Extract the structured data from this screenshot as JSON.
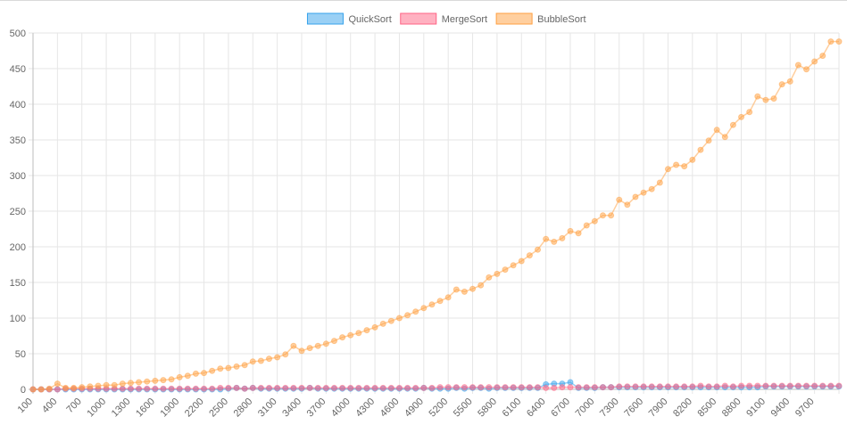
{
  "chart_data": {
    "type": "line",
    "title": "",
    "xlabel": "",
    "ylabel": "",
    "ylim": [
      0,
      500
    ],
    "yticks": [
      0,
      50,
      100,
      150,
      200,
      250,
      300,
      350,
      400,
      450,
      500
    ],
    "grid": true,
    "legend": "top-center",
    "x": [
      100,
      200,
      300,
      400,
      500,
      600,
      700,
      800,
      900,
      1000,
      1100,
      1200,
      1300,
      1400,
      1500,
      1600,
      1700,
      1800,
      1900,
      2000,
      2100,
      2200,
      2300,
      2400,
      2500,
      2600,
      2700,
      2800,
      2900,
      3000,
      3100,
      3200,
      3300,
      3400,
      3500,
      3600,
      3700,
      3800,
      3900,
      4000,
      4100,
      4200,
      4300,
      4400,
      4500,
      4600,
      4700,
      4800,
      4900,
      5000,
      5100,
      5200,
      5300,
      5400,
      5500,
      5600,
      5700,
      5800,
      5900,
      6000,
      6100,
      6200,
      6300,
      6400,
      6500,
      6600,
      6700,
      6800,
      6900,
      7000,
      7100,
      7200,
      7300,
      7400,
      7500,
      7600,
      7700,
      7800,
      7900,
      8000,
      8100,
      8200,
      8300,
      8400,
      8500,
      8600,
      8700,
      8800,
      8900,
      9000,
      9100,
      9200,
      9300,
      9400,
      9500,
      9600,
      9700,
      9800,
      9900,
      10000
    ],
    "x_tick_labels": [
      "100",
      "400",
      "700",
      "1000",
      "1300",
      "1600",
      "1900",
      "2200",
      "2500",
      "2800",
      "3100",
      "3400",
      "3700",
      "4000",
      "4300",
      "4600",
      "4900",
      "5200",
      "5500",
      "5800",
      "6100",
      "6400",
      "6700",
      "7000",
      "7300",
      "7600",
      "7900",
      "8200",
      "8500",
      "8800",
      "9100",
      "9400",
      "9700"
    ],
    "series": [
      {
        "name": "QuickSort",
        "color": "#36a2eb",
        "fill": "rgba(54,162,235,0.5)",
        "values": [
          0,
          0,
          0,
          0,
          0,
          0,
          0,
          0,
          0,
          0,
          0,
          0,
          0,
          0,
          0,
          0,
          0,
          0,
          0,
          0,
          0,
          0,
          0,
          0,
          1,
          2,
          1,
          2,
          1,
          1,
          1,
          1,
          1,
          1,
          2,
          1,
          1,
          1,
          1,
          1,
          1,
          1,
          1,
          1,
          1,
          1,
          1,
          1,
          2,
          1,
          1,
          1,
          2,
          1,
          2,
          2,
          1,
          2,
          2,
          2,
          2,
          2,
          2,
          7,
          8,
          8,
          10,
          2,
          2,
          2,
          3,
          3,
          3,
          3,
          3,
          3,
          3,
          3,
          3,
          3,
          3,
          3,
          3,
          3,
          3,
          3,
          3,
          3,
          3,
          3,
          4,
          4,
          4,
          4,
          4,
          4,
          4,
          4,
          4,
          4
        ]
      },
      {
        "name": "MergeSort",
        "color": "#ff6384",
        "fill": "rgba(255,99,132,0.5)",
        "values": [
          0,
          0,
          0,
          0,
          1,
          1,
          1,
          1,
          1,
          1,
          1,
          1,
          1,
          1,
          1,
          1,
          1,
          1,
          1,
          1,
          1,
          1,
          1,
          2,
          2,
          2,
          1,
          2,
          2,
          2,
          2,
          2,
          2,
          2,
          2,
          2,
          2,
          2,
          2,
          2,
          2,
          2,
          2,
          2,
          2,
          2,
          2,
          2,
          2,
          2,
          3,
          3,
          3,
          3,
          3,
          3,
          3,
          3,
          3,
          3,
          3,
          3,
          3,
          2,
          2,
          3,
          3,
          3,
          3,
          3,
          3,
          3,
          4,
          4,
          4,
          4,
          4,
          4,
          4,
          4,
          4,
          4,
          5,
          4,
          4,
          5,
          4,
          5,
          5,
          5,
          5,
          5,
          5,
          5,
          5,
          5,
          5,
          5,
          5,
          5
        ]
      },
      {
        "name": "BubbleSort",
        "color": "#ff9f40",
        "fill": "rgba(255,159,64,0.5)",
        "values": [
          0,
          0,
          1,
          8,
          2,
          2,
          3,
          4,
          5,
          6,
          6,
          8,
          9,
          10,
          11,
          12,
          13,
          14,
          17,
          19,
          22,
          23,
          26,
          29,
          30,
          32,
          34,
          39,
          40,
          43,
          45,
          49,
          61,
          54,
          58,
          61,
          64,
          68,
          73,
          76,
          79,
          83,
          87,
          92,
          96,
          100,
          104,
          109,
          114,
          119,
          124,
          129,
          140,
          137,
          141,
          146,
          157,
          162,
          168,
          174,
          180,
          188,
          196,
          211,
          207,
          212,
          222,
          219,
          230,
          236,
          244,
          244,
          266,
          259,
          270,
          276,
          281,
          290,
          309,
          315,
          313,
          322,
          336,
          349,
          364,
          354,
          371,
          382,
          389,
          411,
          406,
          408,
          428,
          432,
          455,
          449,
          460,
          468,
          488,
          488
        ]
      }
    ]
  }
}
